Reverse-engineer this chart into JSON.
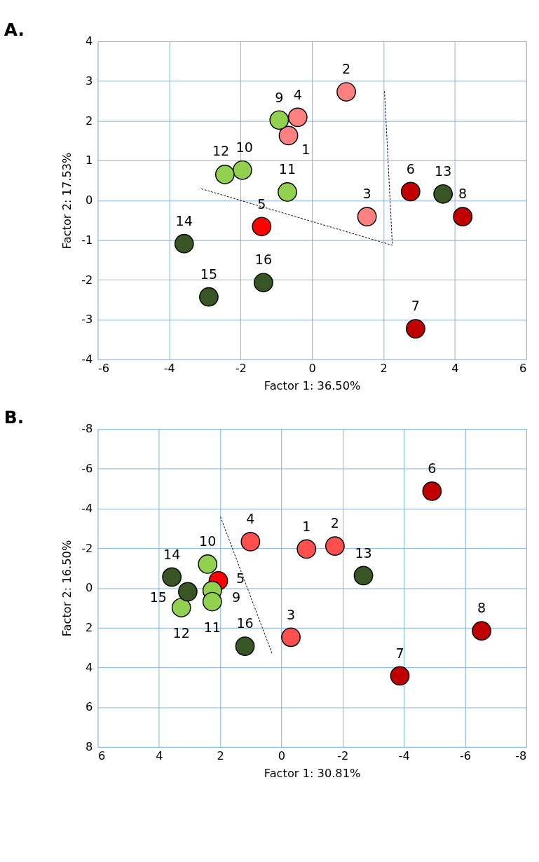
{
  "chart_data": [
    {
      "type": "scatter",
      "title": "A.",
      "xlabel": "Factor 1: 36.50%",
      "ylabel": "Factor 2: 17.53%",
      "xlim": [
        -6,
        6
      ],
      "ylim": [
        -4,
        4
      ],
      "xticks": [
        -6,
        -4,
        -2,
        0,
        2,
        4,
        6
      ],
      "yticks": [
        -4,
        -3,
        -2,
        -1,
        0,
        1,
        2,
        3,
        4
      ],
      "grid": true,
      "marker": "circle",
      "series": [
        {
          "color": "#ff8080",
          "x": [
            -0.66,
            0.96,
            1.54,
            -0.4
          ],
          "values": [
            1.63,
            2.73,
            -0.41,
            2.09
          ]
        },
        {
          "color": "#ff0000",
          "x": [
            -1.41
          ],
          "values": [
            -0.66
          ]
        },
        {
          "color": "#c00000",
          "x": [
            2.76,
            2.9,
            4.22
          ],
          "values": [
            0.22,
            -3.23,
            -0.41
          ]
        },
        {
          "color": "#92d050",
          "x": [
            -0.92,
            -1.95,
            -0.69,
            -2.44
          ],
          "values": [
            2.02,
            0.76,
            0.21,
            0.65
          ]
        },
        {
          "color": "#375623",
          "x": [
            3.67
          ],
          "values": [
            0.16
          ]
        },
        {
          "color": "#375623",
          "x": [
            -3.58,
            -2.89,
            -1.36
          ],
          "values": [
            -1.09,
            -2.43,
            -2.07
          ]
        },
        {
          "type": "line",
          "line_style": "dashed",
          "marker": "none",
          "color": "#000000",
          "x": [
            -3.1,
            2.25,
            2.03
          ],
          "values": [
            0.29,
            -1.13,
            2.75
          ]
        }
      ],
      "annotations": [
        {
          "text": "1",
          "x": -0.66,
          "y": 1.63
        },
        {
          "text": "2",
          "x": 0.96,
          "y": 2.73
        },
        {
          "text": "3",
          "x": 1.54,
          "y": -0.41
        },
        {
          "text": "4",
          "x": -0.4,
          "y": 2.09
        },
        {
          "text": "5",
          "x": -1.41,
          "y": -0.66
        },
        {
          "text": "6",
          "x": 2.76,
          "y": 0.22
        },
        {
          "text": "7",
          "x": 2.9,
          "y": -3.23
        },
        {
          "text": "8",
          "x": 4.22,
          "y": -0.41
        },
        {
          "text": "9",
          "x": -0.92,
          "y": 2.02
        },
        {
          "text": "10",
          "x": -1.95,
          "y": 0.76
        },
        {
          "text": "11",
          "x": -0.69,
          "y": 0.21
        },
        {
          "text": "12",
          "x": -2.44,
          "y": 0.65
        },
        {
          "text": "13",
          "x": 3.67,
          "y": 0.16
        },
        {
          "text": "14",
          "x": -3.58,
          "y": -1.09
        },
        {
          "text": "15",
          "x": -2.89,
          "y": -2.43
        },
        {
          "text": "16",
          "x": -1.36,
          "y": -2.07
        }
      ]
    },
    {
      "type": "scatter",
      "title": "B.",
      "xlabel": "Factor 1: 30.81%",
      "ylabel": "Factor 2: 16.50%",
      "xlim": [
        6,
        -8
      ],
      "ylim": [
        8,
        -8
      ],
      "xticks": [
        6,
        4,
        2,
        0,
        -2,
        -4,
        -6,
        -8
      ],
      "yticks": [
        -8,
        -6,
        -4,
        -2,
        0,
        2,
        4,
        6,
        8
      ],
      "grid": true,
      "marker": "circle",
      "series": [
        {
          "color": "#ff5050",
          "x": [
            -0.82,
            -1.75,
            -0.31,
            1.01
          ],
          "values": [
            -1.96,
            -2.11,
            2.48,
            -2.33
          ]
        },
        {
          "color": "#ff0000",
          "x": [
            2.06
          ],
          "values": [
            -0.36
          ]
        },
        {
          "color": "#c00000",
          "x": [
            -4.92,
            -3.87,
            -6.54
          ],
          "values": [
            -4.87,
            4.42,
            2.16
          ]
        },
        {
          "color": "#92d050",
          "x": [
            2.26,
            2.41,
            2.26,
            3.27
          ],
          "values": [
            0.13,
            -1.2,
            0.69,
            0.99
          ]
        },
        {
          "color": "#375623",
          "x": [
            -2.68
          ],
          "values": [
            -0.62
          ]
        },
        {
          "color": "#375623",
          "x": [
            3.58,
            3.06,
            1.19
          ],
          "values": [
            -0.55,
            0.19,
            2.93
          ]
        },
        {
          "type": "line",
          "line_style": "dashed",
          "marker": "none",
          "color": "#000000",
          "x": [
            1.99,
            0.31
          ],
          "values": [
            -3.58,
            3.28
          ]
        }
      ],
      "annotations": [
        {
          "text": "1",
          "x": -0.82,
          "y": -1.96
        },
        {
          "text": "2",
          "x": -1.75,
          "y": -2.11
        },
        {
          "text": "3",
          "x": -0.31,
          "y": 2.48
        },
        {
          "text": "4",
          "x": 1.01,
          "y": -2.33
        },
        {
          "text": "5",
          "x": 2.06,
          "y": -0.36
        },
        {
          "text": "6",
          "x": -4.92,
          "y": -4.87
        },
        {
          "text": "7",
          "x": -3.87,
          "y": 4.42
        },
        {
          "text": "8",
          "x": -6.54,
          "y": 2.16
        },
        {
          "text": "9",
          "x": 2.26,
          "y": 0.13
        },
        {
          "text": "10",
          "x": 2.41,
          "y": -1.2
        },
        {
          "text": "11",
          "x": 2.26,
          "y": 0.69
        },
        {
          "text": "12",
          "x": 3.27,
          "y": 0.99
        },
        {
          "text": "13",
          "x": -2.68,
          "y": -0.62
        },
        {
          "text": "14",
          "x": 3.58,
          "y": -0.55
        },
        {
          "text": "15",
          "x": 3.06,
          "y": 0.19
        },
        {
          "text": "16",
          "x": 1.19,
          "y": 2.93
        }
      ]
    }
  ]
}
